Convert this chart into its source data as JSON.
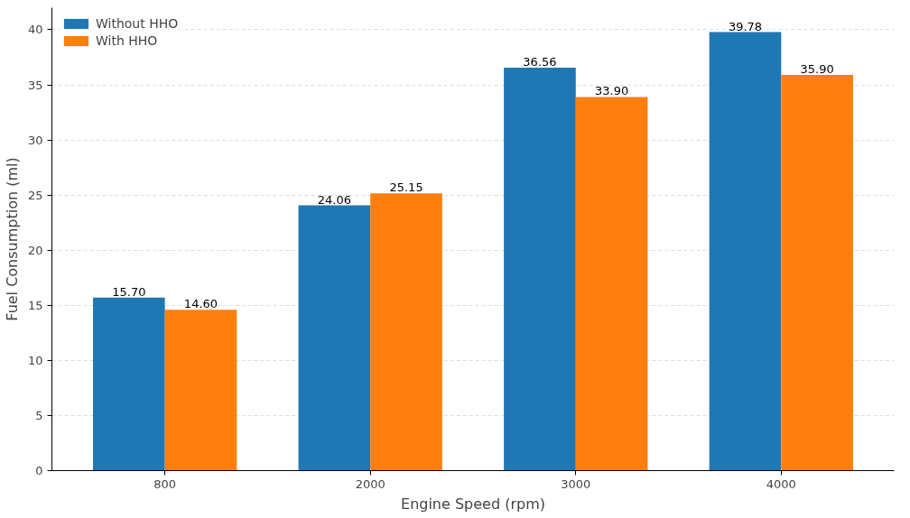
{
  "chart_data": {
    "type": "bar",
    "xlabel": "Engine Speed (rpm)",
    "ylabel": "Fuel Consumption (ml)",
    "categories": [
      "800",
      "2000",
      "3000",
      "4000"
    ],
    "series": [
      {
        "name": "Without HHO",
        "color": "#1f77b4",
        "values": [
          15.7,
          24.06,
          36.56,
          39.78
        ],
        "value_labels": [
          "15.70",
          "24.06",
          "36.56",
          "39.78"
        ]
      },
      {
        "name": "With HHO",
        "color": "#ff7f0e",
        "values": [
          14.6,
          25.15,
          33.9,
          35.9
        ],
        "value_labels": [
          "14.60",
          "25.15",
          "33.90",
          "35.90"
        ]
      }
    ],
    "ylim": [
      0,
      42
    ],
    "yticks": [
      0,
      5,
      10,
      15,
      20,
      25,
      30,
      35,
      40
    ],
    "grid": "y",
    "legend": "top left"
  }
}
